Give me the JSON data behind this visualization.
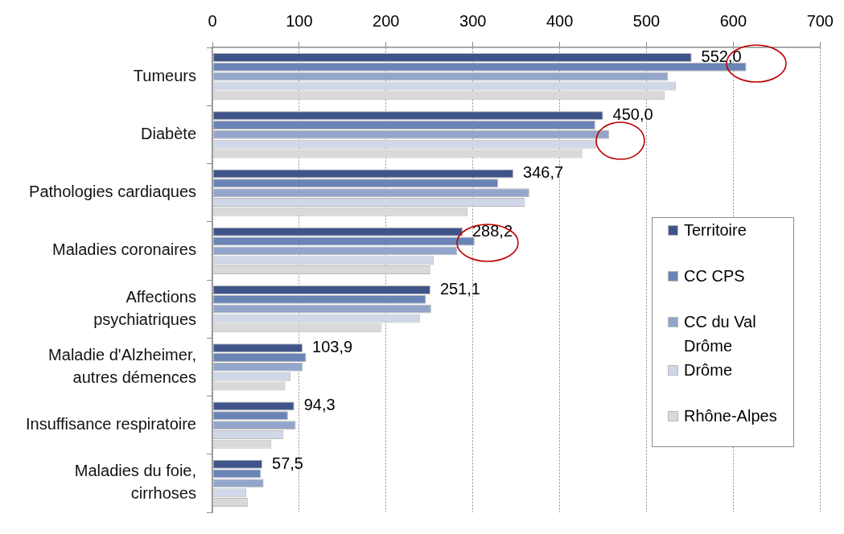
{
  "chart_data": {
    "type": "bar",
    "orientation": "horizontal",
    "categories": [
      "Tumeurs",
      "Diabète",
      "Pathologies cardiaques",
      "Maladies coronaires",
      "Affections\npsychiatriques",
      "Maladie d'Alzheimer,\nautres démences",
      "Insuffisance respiratoire",
      "Maladies du foie,\ncirrhoses"
    ],
    "series": [
      {
        "name": "Territoire",
        "color": "#41548a",
        "values": [
          552.0,
          450.0,
          346.7,
          288.2,
          251.1,
          103.9,
          94.3,
          57.5
        ],
        "value_labels": [
          "552,0",
          "450,0",
          "346,7",
          "288,2",
          "251,1",
          "103,9",
          "94,3",
          "57,5"
        ]
      },
      {
        "name": "CC CPS",
        "color": "#6b84b6",
        "values": [
          615,
          441,
          329,
          302,
          246,
          108,
          87,
          56
        ]
      },
      {
        "name": "CC du Val Drôme",
        "color": "#93a5ca",
        "values": [
          525,
          457,
          365,
          282,
          252,
          104,
          96,
          59
        ]
      },
      {
        "name": "Drôme",
        "color": "#cfd7e8",
        "values": [
          534,
          442,
          360,
          255,
          239,
          90,
          82,
          39
        ]
      },
      {
        "name": "Rhône-Alpes",
        "color": "#d9d9d9",
        "values": [
          521,
          426,
          294,
          251,
          195,
          84,
          68,
          41
        ]
      }
    ],
    "xlim": [
      0,
      700
    ],
    "xticks": [
      0,
      100,
      200,
      300,
      400,
      500,
      600,
      700
    ],
    "grid": "x",
    "legend": "right"
  }
}
